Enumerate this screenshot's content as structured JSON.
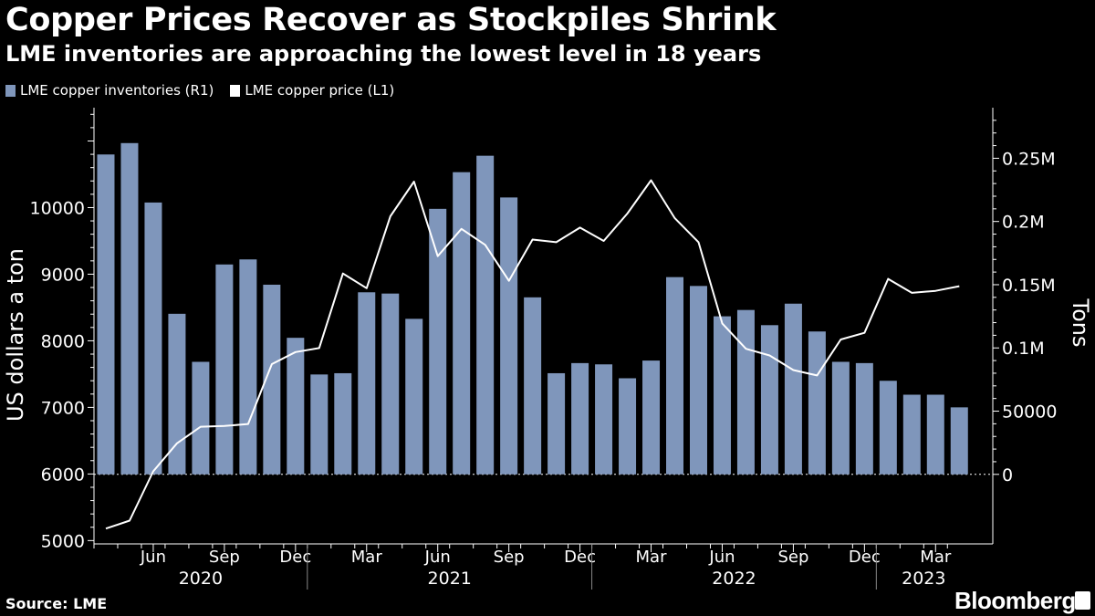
{
  "title": "Copper Prices Recover as Stockpiles Shrink",
  "subtitle": "LME inventories are approaching the lowest level in 18 years",
  "source": "Source: LME",
  "brand": "Bloomberg",
  "colors": {
    "background": "#000000",
    "bars": "#7f96bb",
    "line": "#ffffff",
    "text": "#ffffff"
  },
  "legend": [
    {
      "label": "LME copper inventories (R1)",
      "color": "#7f96bb"
    },
    {
      "label": "LME copper price (L1)",
      "color": "#ffffff"
    }
  ],
  "chart_data": {
    "type": "bar+line",
    "xlabel": "",
    "ylabel_left": "US dollars a ton",
    "ylabel_right": "Tons",
    "ylim_left": [
      4950,
      11500
    ],
    "ylim_right": [
      -55000,
      290000
    ],
    "left_ticks": [
      5000,
      6000,
      7000,
      8000,
      9000,
      10000
    ],
    "right_ticks": [
      0,
      50000,
      100000,
      150000,
      200000,
      250000
    ],
    "right_tick_labels": [
      "0",
      "50000",
      "0.1M",
      "0.15M",
      "0.2M",
      "0.25M"
    ],
    "categories": [
      "2020-04",
      "2020-05",
      "2020-06",
      "2020-07",
      "2020-08",
      "2020-09",
      "2020-10",
      "2020-11",
      "2020-12",
      "2021-01",
      "2021-02",
      "2021-03",
      "2021-04",
      "2021-05",
      "2021-06",
      "2021-07",
      "2021-08",
      "2021-09",
      "2021-10",
      "2021-11",
      "2021-12",
      "2022-01",
      "2022-02",
      "2022-03",
      "2022-04",
      "2022-05",
      "2022-06",
      "2022-07",
      "2022-08",
      "2022-09",
      "2022-10",
      "2022-11",
      "2022-12",
      "2023-01",
      "2023-02",
      "2023-03",
      "2023-04"
    ],
    "month_ticks": [
      {
        "label": "Jun",
        "index": 2
      },
      {
        "label": "Sep",
        "index": 5
      },
      {
        "label": "Dec",
        "index": 8
      },
      {
        "label": "Mar",
        "index": 11
      },
      {
        "label": "Jun",
        "index": 14
      },
      {
        "label": "Sep",
        "index": 17
      },
      {
        "label": "Dec",
        "index": 20
      },
      {
        "label": "Mar",
        "index": 23
      },
      {
        "label": "Jun",
        "index": 26
      },
      {
        "label": "Sep",
        "index": 29
      },
      {
        "label": "Dec",
        "index": 32
      },
      {
        "label": "Mar",
        "index": 35
      }
    ],
    "years": [
      {
        "label": "2020",
        "start": 0,
        "end": 8
      },
      {
        "label": "2021",
        "start": 9,
        "end": 20
      },
      {
        "label": "2022",
        "start": 21,
        "end": 32
      },
      {
        "label": "2023",
        "start": 33,
        "end": 36
      }
    ],
    "series": [
      {
        "name": "LME copper inventories (R1)",
        "axis": "right",
        "kind": "bar",
        "values": [
          253000,
          262000,
          215000,
          127000,
          89000,
          166000,
          170000,
          150000,
          108000,
          79000,
          80000,
          144000,
          143000,
          123000,
          210000,
          239000,
          252000,
          219000,
          140000,
          80000,
          88000,
          87000,
          76000,
          90000,
          156000,
          149000,
          125000,
          130000,
          118000,
          135000,
          113000,
          89000,
          88000,
          74000,
          63000,
          63000,
          53000
        ]
      },
      {
        "name": "LME copper price (L1)",
        "axis": "left",
        "kind": "line",
        "values": [
          5180,
          5300,
          6040,
          6460,
          6710,
          6720,
          6750,
          7650,
          7830,
          7890,
          9010,
          8790,
          9870,
          10390,
          9270,
          9680,
          9440,
          8900,
          9520,
          9480,
          9700,
          9500,
          9910,
          10410,
          9840,
          9480,
          8260,
          7880,
          7780,
          7560,
          7480,
          8020,
          8120,
          8930,
          8720,
          8750,
          8820
        ]
      }
    ]
  }
}
